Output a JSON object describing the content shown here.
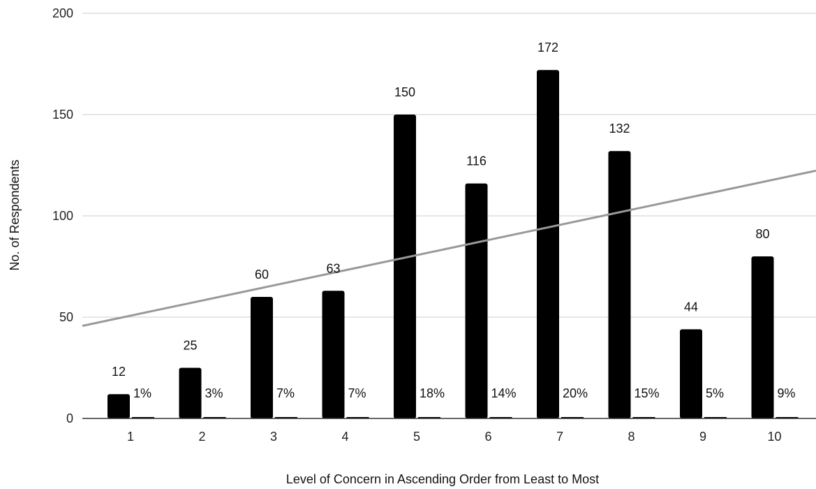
{
  "chart_data": {
    "type": "bar",
    "title": "",
    "xlabel": "Level of Concern in Ascending Order from Least to Most",
    "ylabel": "No. of Respondents",
    "categories": [
      "1",
      "2",
      "3",
      "4",
      "5",
      "6",
      "7",
      "8",
      "9",
      "10"
    ],
    "series": [
      {
        "values": [
          12,
          25,
          60,
          63,
          150,
          116,
          172,
          132,
          44,
          80
        ],
        "data_labels": [
          "12",
          "25",
          "60",
          "63",
          "150",
          "116",
          "172",
          "132",
          "44",
          "80"
        ],
        "color": "#000000"
      },
      {
        "values": [
          0.01,
          0.03,
          0.07,
          0.07,
          0.18,
          0.14,
          0.2,
          0.15,
          0.05,
          0.09
        ],
        "data_labels": [
          "1%",
          "3%",
          "7%",
          "7%",
          "18%",
          "14%",
          "20%",
          "15%",
          "5%",
          "9%"
        ],
        "color": "#000000"
      }
    ],
    "trendline": {
      "type": "linear",
      "start_value": 45.7,
      "end_value": 122.3,
      "color": "#999999"
    },
    "ylim": [
      0,
      200
    ],
    "yticks": [
      "0",
      "50",
      "100",
      "150",
      "200"
    ],
    "grid": true,
    "legend": "none"
  }
}
